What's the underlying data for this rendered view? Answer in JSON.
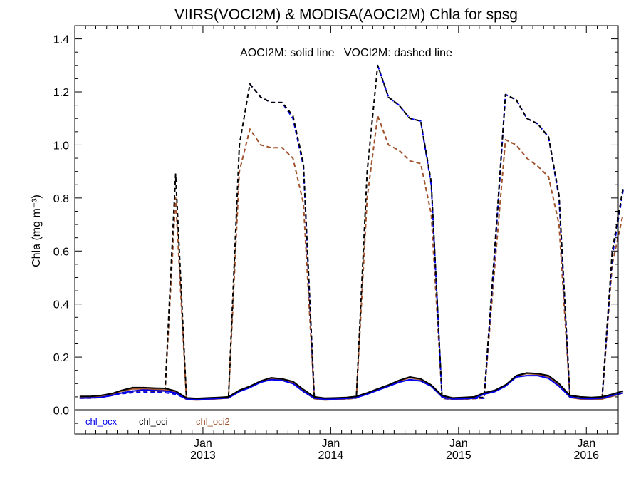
{
  "chart_data": {
    "type": "line",
    "title": "VIIRS(VOCI2M) & MODISA(AOCI2M)  Chla for spsg",
    "annotation": "AOCI2M: solid line   VOCI2M: dashed line",
    "ylabel": "Chla (mg m⁻³)",
    "xlabel": "",
    "ylim": [
      -0.09,
      1.45
    ],
    "xlim": [
      "2012-01-01",
      "2016-04-01"
    ],
    "yticks": [
      0.0,
      0.2,
      0.4,
      0.6,
      0.8,
      1.0,
      1.2,
      1.4
    ],
    "ytick_labels": [
      "0.0",
      "0.2",
      "0.4",
      "0.6",
      "0.8",
      "1.0",
      "1.2",
      "1.4"
    ],
    "xticks": [
      {
        "date": "2013-01-01",
        "month": "Jan",
        "year": "2013"
      },
      {
        "date": "2014-01-01",
        "month": "Jan",
        "year": "2014"
      },
      {
        "date": "2015-01-01",
        "month": "Jan",
        "year": "2015"
      },
      {
        "date": "2016-01-01",
        "month": "Jan",
        "year": "2016"
      }
    ],
    "reference_line": 0.0,
    "legend": [
      {
        "name": "chl_ocx",
        "color": "#0000ee"
      },
      {
        "name": "chl_oci",
        "color": "#000000"
      },
      {
        "name": "chl_oci2",
        "color": "#a0522d"
      }
    ],
    "x": [
      "2012-01",
      "2012-02",
      "2012-03",
      "2012-04",
      "2012-05",
      "2012-06",
      "2012-07",
      "2012-08",
      "2012-09",
      "2012-10",
      "2012-11",
      "2012-12",
      "2013-01",
      "2013-02",
      "2013-03",
      "2013-04",
      "2013-05",
      "2013-06",
      "2013-07",
      "2013-08",
      "2013-09",
      "2013-10",
      "2013-11",
      "2013-12",
      "2014-01",
      "2014-02",
      "2014-03",
      "2014-04",
      "2014-05",
      "2014-06",
      "2014-07",
      "2014-08",
      "2014-09",
      "2014-10",
      "2014-11",
      "2014-12",
      "2015-01",
      "2015-02",
      "2015-03",
      "2015-04",
      "2015-05",
      "2015-06",
      "2015-07",
      "2015-08",
      "2015-09",
      "2015-10",
      "2015-11",
      "2015-12",
      "2016-01",
      "2016-02",
      "2016-03",
      "2016-04"
    ],
    "series": [
      {
        "name": "chl_ocx",
        "sensor": "AOCI2M",
        "style": "solid",
        "color": "#0000ee",
        "values": [
          0.045,
          0.046,
          0.048,
          0.055,
          0.065,
          0.072,
          0.076,
          0.074,
          0.072,
          0.065,
          0.042,
          0.04,
          0.042,
          0.044,
          0.046,
          0.07,
          0.085,
          0.105,
          0.115,
          0.112,
          0.1,
          0.07,
          0.045,
          0.041,
          0.042,
          0.044,
          0.047,
          0.06,
          0.075,
          0.09,
          0.105,
          0.115,
          0.11,
          0.09,
          0.05,
          0.042,
          0.043,
          0.045,
          0.06,
          0.07,
          0.09,
          0.125,
          0.13,
          0.13,
          0.12,
          0.09,
          0.05,
          0.044,
          0.043,
          0.045,
          0.055,
          0.065
        ]
      },
      {
        "name": "chl_oci",
        "sensor": "AOCI2M",
        "style": "solid",
        "color": "#000000",
        "values": [
          0.052,
          0.052,
          0.055,
          0.062,
          0.075,
          0.085,
          0.085,
          0.083,
          0.082,
          0.072,
          0.046,
          0.044,
          0.046,
          0.048,
          0.05,
          0.075,
          0.09,
          0.11,
          0.122,
          0.118,
          0.108,
          0.078,
          0.05,
          0.045,
          0.046,
          0.048,
          0.052,
          0.065,
          0.08,
          0.095,
          0.112,
          0.125,
          0.118,
          0.095,
          0.055,
          0.046,
          0.048,
          0.05,
          0.065,
          0.075,
          0.095,
          0.13,
          0.14,
          0.138,
          0.13,
          0.1,
          0.055,
          0.05,
          0.048,
          0.05,
          0.06,
          0.072
        ]
      },
      {
        "name": "chl_oci2",
        "sensor": "AOCI2M",
        "style": "solid",
        "color": "#a0522d",
        "values": [
          0.048,
          0.049,
          0.052,
          0.06,
          0.072,
          0.08,
          0.08,
          0.078,
          0.076,
          0.068,
          0.04,
          0.038,
          0.04,
          0.043,
          0.046,
          0.072,
          0.088,
          0.108,
          0.118,
          0.115,
          0.104,
          0.072,
          0.043,
          0.038,
          0.04,
          0.043,
          0.047,
          0.062,
          0.078,
          0.093,
          0.11,
          0.122,
          0.115,
          0.092,
          0.05,
          0.04,
          0.042,
          0.045,
          0.062,
          0.073,
          0.093,
          0.128,
          0.138,
          0.135,
          0.126,
          0.095,
          0.048,
          0.042,
          0.04,
          0.042,
          0.052,
          0.065
        ]
      },
      {
        "name": "chl_ocx",
        "sensor": "VOCI2M",
        "style": "dashed",
        "color": "#0000ee",
        "values": [
          0.046,
          0.046,
          0.048,
          0.055,
          0.062,
          0.066,
          0.068,
          0.067,
          0.066,
          0.06,
          0.043,
          0.041,
          0.042,
          0.044,
          0.046,
          null,
          1.23,
          1.18,
          1.16,
          1.16,
          1.1,
          0.92,
          0.045,
          0.04,
          0.041,
          0.043,
          0.046,
          null,
          1.3,
          1.18,
          1.15,
          1.1,
          1.09,
          0.85,
          0.045,
          0.041,
          0.042,
          0.044,
          0.045,
          0.6,
          1.19,
          1.17,
          1.1,
          1.08,
          1.03,
          0.8,
          0.05,
          0.045,
          0.044,
          0.045,
          0.58,
          0.83
        ]
      },
      {
        "name": "chl_oci",
        "sensor": "VOCI2M",
        "style": "dashed",
        "color": "#000000",
        "values": [
          0.048,
          0.048,
          0.05,
          0.058,
          0.066,
          0.072,
          0.075,
          0.073,
          0.072,
          0.89,
          0.046,
          0.043,
          0.045,
          0.047,
          0.048,
          1.0,
          1.23,
          1.18,
          1.16,
          1.16,
          1.11,
          0.93,
          0.048,
          0.043,
          0.044,
          0.046,
          0.048,
          0.9,
          1.3,
          1.18,
          1.15,
          1.1,
          1.09,
          0.86,
          0.048,
          0.044,
          0.045,
          0.047,
          0.048,
          0.62,
          1.19,
          1.17,
          1.1,
          1.08,
          1.03,
          0.81,
          0.053,
          0.048,
          0.047,
          0.048,
          0.6,
          0.84
        ]
      },
      {
        "name": "chl_oci2",
        "sensor": "VOCI2M",
        "style": "dashed",
        "color": "#a0522d",
        "values": [
          0.045,
          0.045,
          0.048,
          0.055,
          0.064,
          0.07,
          0.072,
          0.07,
          0.069,
          0.8,
          0.042,
          0.039,
          0.041,
          0.043,
          0.045,
          0.9,
          1.06,
          1.0,
          0.99,
          0.99,
          0.95,
          0.78,
          0.044,
          0.039,
          0.04,
          0.042,
          0.045,
          0.8,
          1.11,
          1.0,
          0.98,
          0.94,
          0.93,
          0.74,
          0.044,
          0.04,
          0.041,
          0.043,
          0.045,
          0.55,
          1.02,
          1.0,
          0.95,
          0.92,
          0.88,
          0.7,
          0.048,
          0.043,
          0.042,
          0.043,
          0.55,
          0.74
        ]
      }
    ]
  }
}
